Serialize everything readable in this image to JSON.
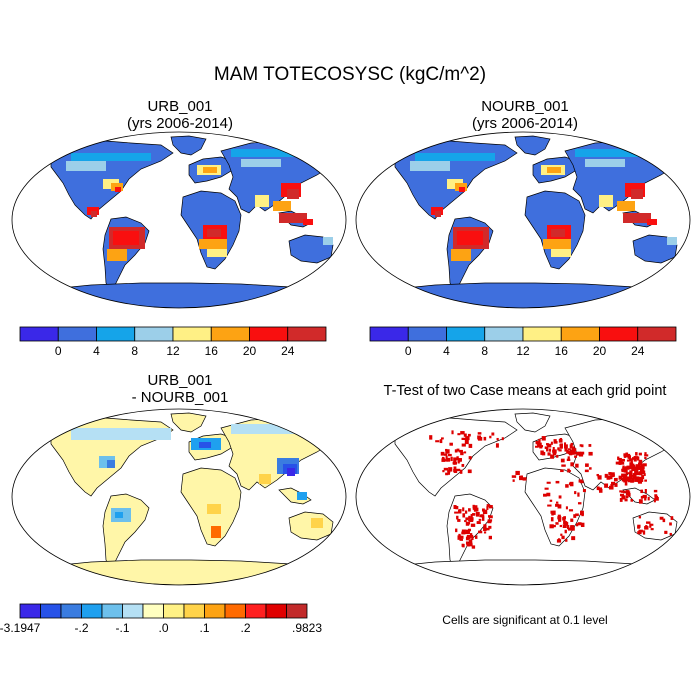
{
  "main_title": "MAM TOTECOSYSC (kgC/m^2)",
  "panels": {
    "top_left": {
      "title1": "URB_001",
      "title2": "(yrs 2006-2014)"
    },
    "top_right": {
      "title1": "NOURB_001",
      "title2": "(yrs 2006-2014)"
    },
    "bottom_left": {
      "title1": "URB_001",
      "title2": "- NOURB_001"
    },
    "bottom_right": {
      "title1": "T-Test of two Case means at each grid point"
    }
  },
  "colorbar_main": {
    "colors": [
      "#3a28e8",
      "#3f6fdd",
      "#15a4e9",
      "#9ccfe9",
      "#fff085",
      "#fda313",
      "#f90f0f",
      "#d12a2a"
    ],
    "ticks": [
      "0",
      "4",
      "8",
      "12",
      "16",
      "20",
      "24"
    ]
  },
  "colorbar_diff": {
    "colors": [
      "#3a28e8",
      "#2752e8",
      "#3a7ce0",
      "#1fa0ef",
      "#6dc0ec",
      "#b5e0f4",
      "#ffffc0",
      "#fff185",
      "#ffd34a",
      "#fda313",
      "#ff6a00",
      "#ff2020",
      "#e00000",
      "#c22a2a"
    ],
    "ticks": [
      "-3.1947",
      "-.2",
      "-.1",
      ".0",
      ".1",
      ".2",
      ".9823"
    ]
  },
  "note": "Cells are significant at 0.1 level",
  "colors": {
    "land_main": "#3f6fdd",
    "land_diff": "#fff6a8",
    "signif": "#dd0000"
  }
}
